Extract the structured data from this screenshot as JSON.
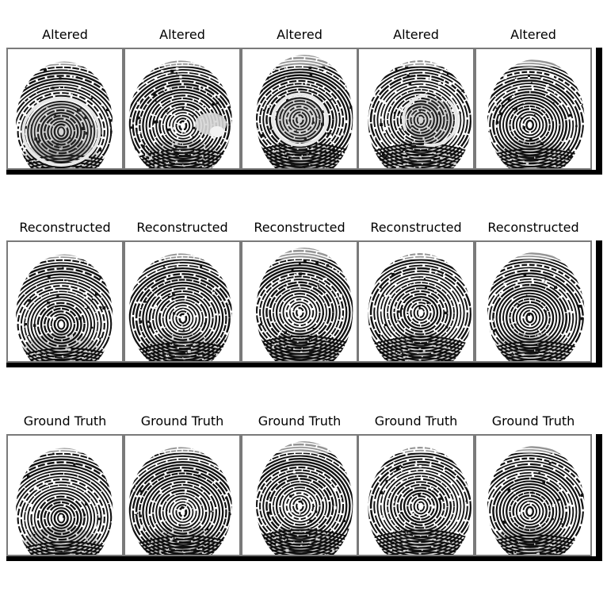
{
  "figure": {
    "rows": [
      {
        "label": "Altered",
        "panels": [
          {
            "title": "Altered",
            "artifact": "ring"
          },
          {
            "title": "Altered",
            "artifact": "blob"
          },
          {
            "title": "Altered",
            "artifact": "ring"
          },
          {
            "title": "Altered",
            "artifact": "ring-partial"
          },
          {
            "title": "Altered",
            "artifact": "none"
          }
        ]
      },
      {
        "label": "Reconstructed",
        "panels": [
          {
            "title": "Reconstructed",
            "artifact": "none"
          },
          {
            "title": "Reconstructed",
            "artifact": "none"
          },
          {
            "title": "Reconstructed",
            "artifact": "none"
          },
          {
            "title": "Reconstructed",
            "artifact": "none"
          },
          {
            "title": "Reconstructed",
            "artifact": "none"
          }
        ]
      },
      {
        "label": "Ground Truth",
        "panels": [
          {
            "title": "Ground Truth",
            "artifact": "none"
          },
          {
            "title": "Ground Truth",
            "artifact": "none"
          },
          {
            "title": "Ground Truth",
            "artifact": "none"
          },
          {
            "title": "Ground Truth",
            "artifact": "none"
          },
          {
            "title": "Ground Truth",
            "artifact": "none"
          }
        ]
      }
    ],
    "colors": {
      "ridge": "#111111",
      "background": "#ffffff",
      "tile_border": "#7a7a7a",
      "strip_bar": "#000000"
    }
  }
}
